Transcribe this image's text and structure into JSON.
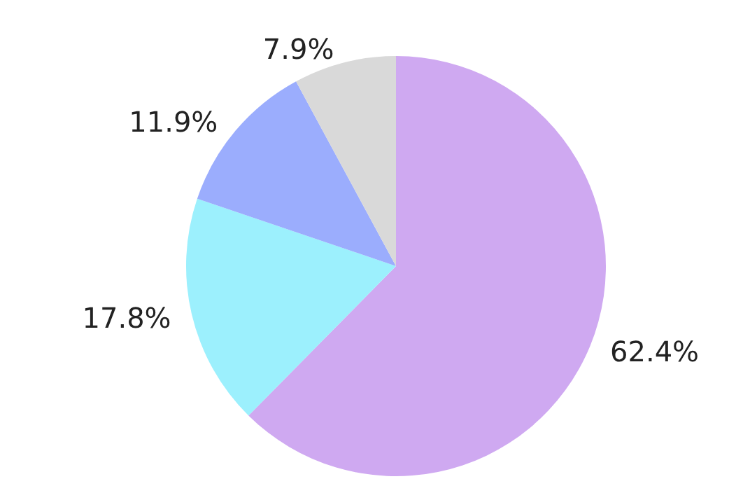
{
  "chart_data": {
    "type": "pie",
    "categories": [
      null,
      null,
      null,
      null
    ],
    "values": [
      62.4,
      17.8,
      11.9,
      7.9
    ],
    "colors": [
      "#cfa9f1",
      "#9cf0fd",
      "#9badfd",
      "#d9d9d9"
    ],
    "value_labels": [
      "62.4%",
      "17.8%",
      "11.9%",
      "7.9%"
    ]
  }
}
